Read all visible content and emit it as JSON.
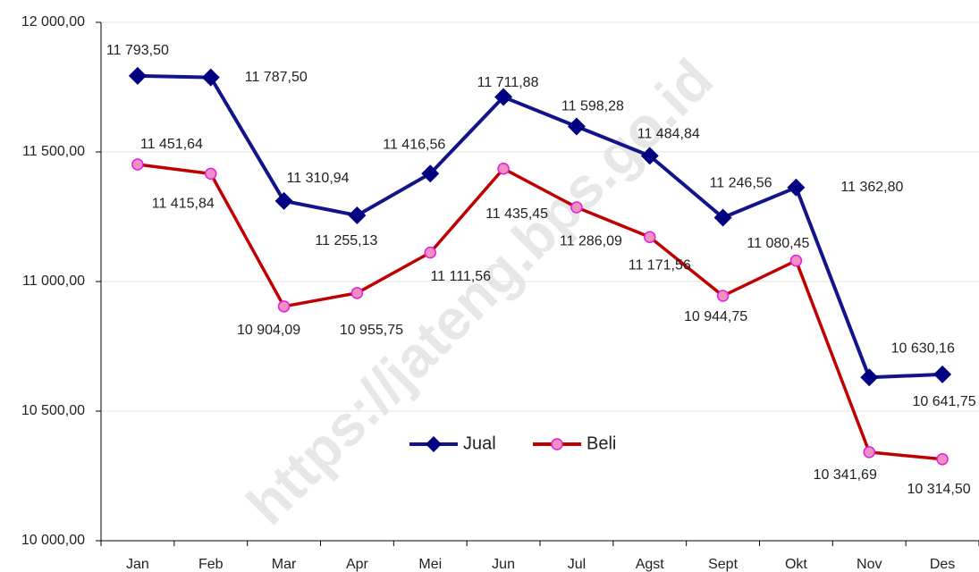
{
  "chart_data": {
    "type": "line",
    "watermark": "https://jateng.bps.go.id",
    "categories": [
      "Jan",
      "Feb",
      "Mar",
      "Apr",
      "Mei",
      "Jun",
      "Jul",
      "Agst",
      "Sept",
      "Okt",
      "Nov",
      "Des"
    ],
    "series": [
      {
        "name": "Jual",
        "color": "#14148a",
        "marker": "diamond",
        "marker_color": "#000080",
        "values": [
          11793.5,
          11787.5,
          11310.94,
          11255.13,
          11416.56,
          11711.88,
          11598.28,
          11484.84,
          11246.56,
          11362.8,
          10630.16,
          10641.75
        ],
        "value_labels": [
          "11 793,50",
          "11 787,50",
          "11 310,94",
          "11 255,13",
          "11 416,56",
          "11 711,88",
          "11 598,28",
          "11 484,84",
          "11 246,56",
          "11 362,80",
          "10 630,16",
          "10 641,75"
        ]
      },
      {
        "name": "Beli",
        "color": "#c00000",
        "marker": "circle",
        "marker_color": "#f090c0",
        "values": [
          11451.64,
          11415.84,
          10904.09,
          10955.75,
          11111.56,
          11435.45,
          11286.09,
          11171.56,
          10944.75,
          11080.45,
          10341.69,
          10314.5
        ],
        "value_labels": [
          "11 451,64",
          "11 415,84",
          "10 904,09",
          "10 955,75",
          "11 111,56",
          "11 435,45",
          "11 286,09",
          "11 171,56",
          "10 944,75",
          "11 080,45",
          "10 341,69",
          "10 314,50"
        ]
      }
    ],
    "ylim": [
      10000,
      12000
    ],
    "yticks": [
      {
        "value": 10000,
        "label": "10 000,00"
      },
      {
        "value": 10500,
        "label": "10 500,00"
      },
      {
        "value": 11000,
        "label": "11 000,00"
      },
      {
        "value": 11500,
        "label": "11 500,00"
      },
      {
        "value": 12000,
        "label": "12 000,00"
      }
    ],
    "grid": true,
    "legend": "bottom"
  }
}
